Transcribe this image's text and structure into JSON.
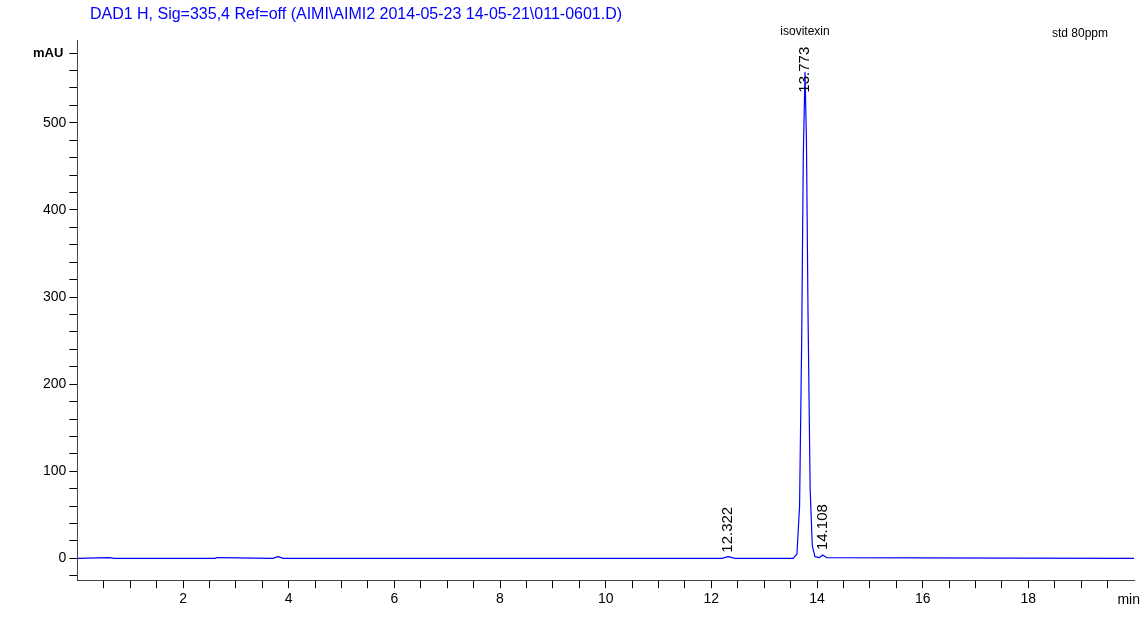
{
  "chart_data": {
    "type": "line",
    "title": "DAD1 H, Sig=335,4 Ref=off (AIMI\\AIMI2 2014-05-23 14-05-21\\011-0601.D)",
    "ylabel": "mAU",
    "xlabel": "min",
    "x": [
      0,
      0.6,
      0.7,
      2.6,
      2.65,
      3.7,
      3.8,
      3.9,
      12.2,
      12.32,
      12.45,
      13.55,
      13.62,
      13.67,
      13.71,
      13.74,
      13.773,
      13.8,
      13.83,
      13.87,
      13.91,
      13.96,
      14.05,
      14.108,
      14.18,
      20
    ],
    "series": [
      {
        "color": "#0000ff",
        "values": [
          0,
          1,
          0,
          0,
          1,
          0,
          2,
          0,
          0,
          2,
          0,
          0,
          5,
          60,
          250,
          460,
          558,
          480,
          280,
          80,
          15,
          2,
          1,
          4,
          1,
          0
        ]
      }
    ],
    "xlim": [
      0,
      20
    ],
    "xticks": [
      {
        "value": 0.5,
        "label": null
      },
      {
        "value": 1,
        "label": null
      },
      {
        "value": 1.5,
        "label": null
      },
      2,
      {
        "value": 2.5,
        "label": null
      },
      {
        "value": 3,
        "label": null
      },
      {
        "value": 3.5,
        "label": null
      },
      4,
      {
        "value": 4.5,
        "label": null
      },
      {
        "value": 5,
        "label": null
      },
      {
        "value": 5.5,
        "label": null
      },
      6,
      {
        "value": 6.5,
        "label": null
      },
      {
        "value": 7,
        "label": null
      },
      {
        "value": 7.5,
        "label": null
      },
      8,
      {
        "value": 8.5,
        "label": null
      },
      {
        "value": 9,
        "label": null
      },
      {
        "value": 9.5,
        "label": null
      },
      10,
      {
        "value": 10.5,
        "label": null
      },
      {
        "value": 11,
        "label": null
      },
      {
        "value": 11.5,
        "label": null
      },
      12,
      {
        "value": 12.5,
        "label": null
      },
      {
        "value": 13,
        "label": null
      },
      {
        "value": 13.5,
        "label": null
      },
      14,
      {
        "value": 14.5,
        "label": null
      },
      {
        "value": 15,
        "label": null
      },
      {
        "value": 15.5,
        "label": null
      },
      16,
      {
        "value": 16.5,
        "label": null
      },
      {
        "value": 17,
        "label": null
      },
      {
        "value": 17.5,
        "label": null
      },
      18,
      {
        "value": 18.5,
        "label": null
      },
      {
        "value": 19,
        "label": null
      },
      {
        "value": 19.5,
        "label": null
      }
    ],
    "ylim": [
      -25,
      595
    ],
    "yticks": [
      {
        "value": -20,
        "label": null
      },
      0,
      {
        "value": 20,
        "label": null
      },
      {
        "value": 40,
        "label": null
      },
      {
        "value": 60,
        "label": null
      },
      {
        "value": 80,
        "label": null
      },
      100,
      {
        "value": 120,
        "label": null
      },
      {
        "value": 140,
        "label": null
      },
      {
        "value": 160,
        "label": null
      },
      {
        "value": 180,
        "label": null
      },
      200,
      {
        "value": 220,
        "label": null
      },
      {
        "value": 240,
        "label": null
      },
      {
        "value": 260,
        "label": null
      },
      {
        "value": 280,
        "label": null
      },
      300,
      {
        "value": 320,
        "label": null
      },
      {
        "value": 340,
        "label": null
      },
      {
        "value": 360,
        "label": null
      },
      {
        "value": 380,
        "label": null
      },
      400,
      {
        "value": 420,
        "label": null
      },
      {
        "value": 440,
        "label": null
      },
      {
        "value": 460,
        "label": null
      },
      {
        "value": 480,
        "label": null
      },
      500,
      {
        "value": 520,
        "label": null
      },
      {
        "value": 540,
        "label": null
      },
      {
        "value": 560,
        "label": null
      },
      {
        "value": 580,
        "label": null
      }
    ],
    "annotations": [
      {
        "text": "12.322",
        "x": 12.322,
        "y": 2
      },
      {
        "text": "13.773",
        "x": 13.773,
        "y": 530
      },
      {
        "text": "14.108",
        "x": 14.108,
        "y": 5
      },
      "isovitexin",
      "std 80ppm"
    ],
    "grid": false,
    "legend": false,
    "marker": "none",
    "line_style": "solid"
  }
}
